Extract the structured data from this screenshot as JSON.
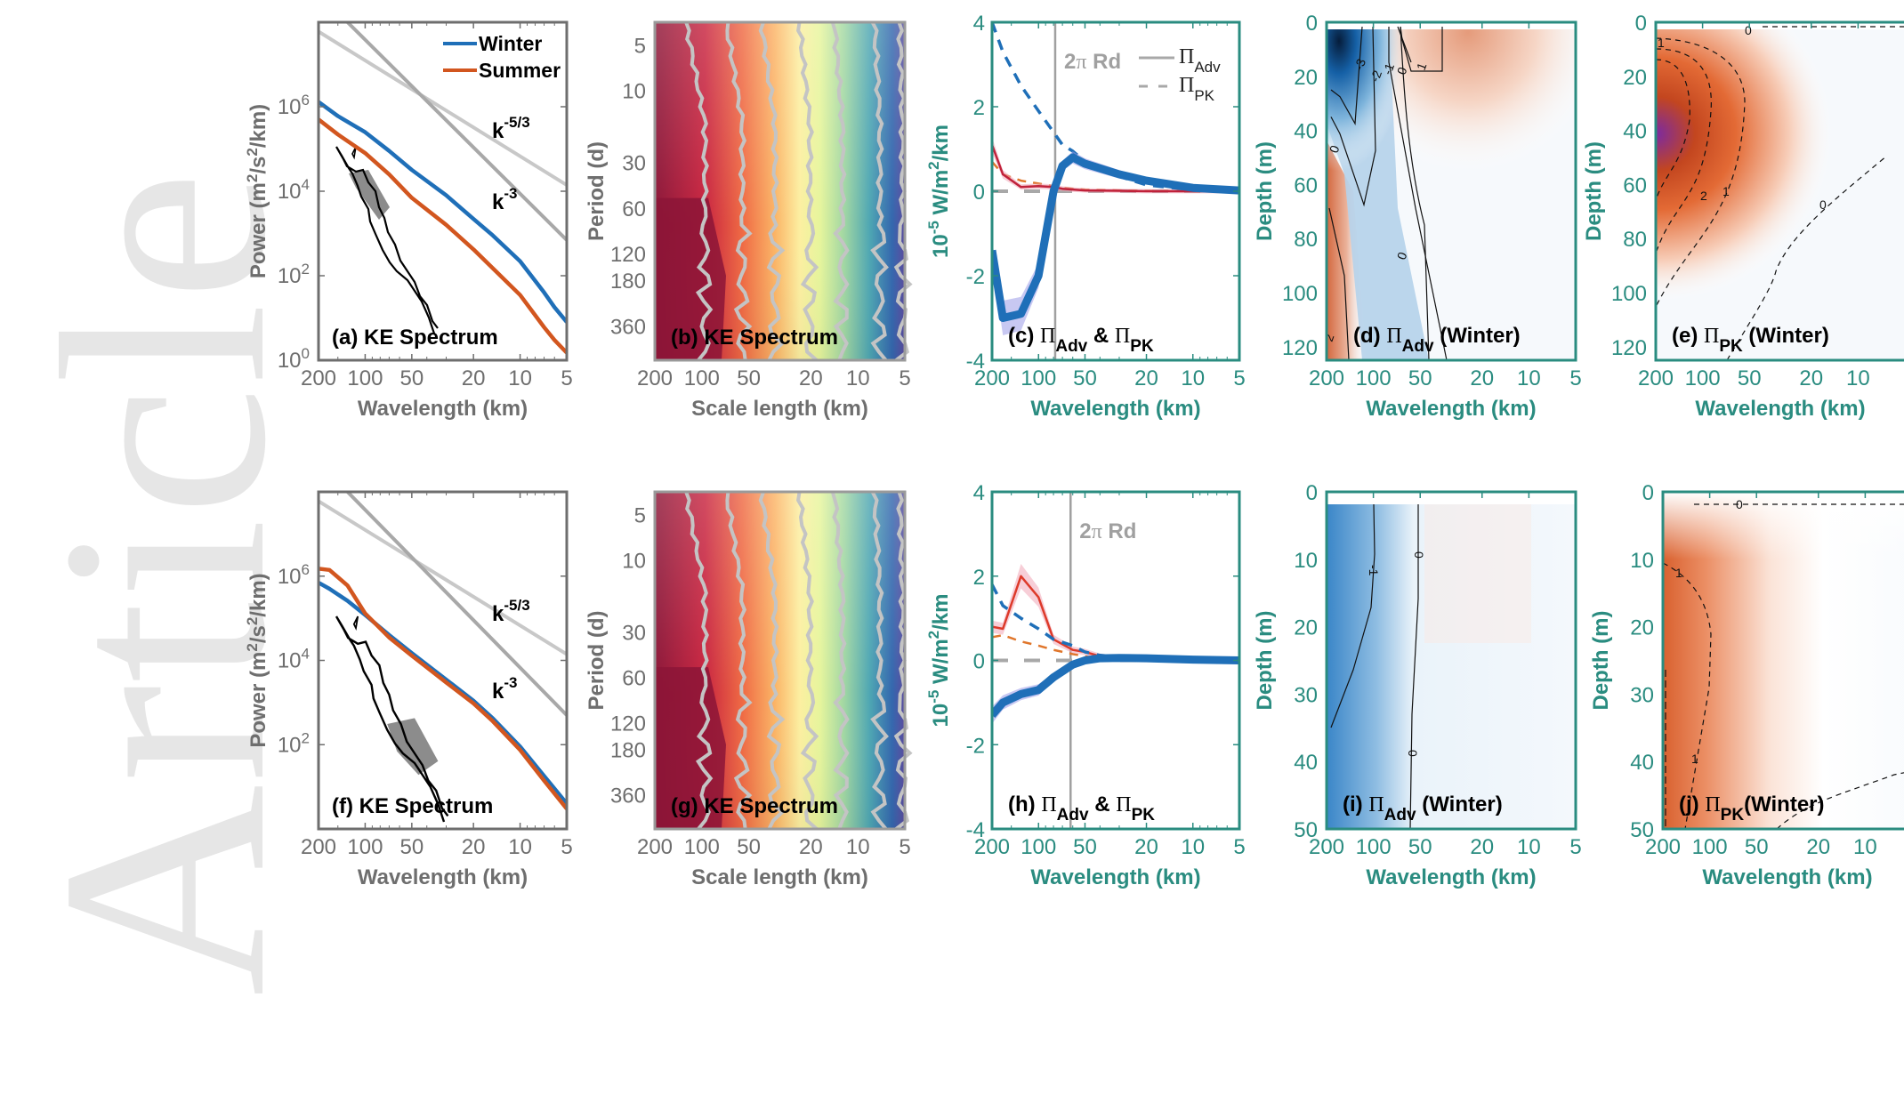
{
  "watermark": "Article",
  "colors": {
    "gray_axis": "#6e6e6e",
    "teal_axis": "#2a8c80",
    "winter": "#1f6fb8",
    "summer": "#d2561f",
    "ref_light": "#c8c8c8",
    "ref_dark": "#a8a8a8",
    "rd_line": "#a0a0a0",
    "adv_red": "#c0213a",
    "pk_orange": "#e0762b"
  },
  "chart_data": [
    {
      "id": "a",
      "type": "line",
      "title": "(a) KE Spectrum",
      "xlabel": "Wavelength (km)",
      "ylabel": "Power (m²/s²/km)",
      "xscale": "log-reversed",
      "yscale": "log",
      "xlim": [
        200,
        5
      ],
      "ylim": [
        1,
        100000000
      ],
      "xticks": [
        200,
        100,
        50,
        20,
        10,
        5
      ],
      "yticks": [
        {
          "v": 1,
          "label": "10",
          "exp": "0"
        },
        {
          "v": 100,
          "label": "10",
          "exp": "2"
        },
        {
          "v": 10000,
          "label": "10",
          "exp": "4"
        },
        {
          "v": 1000000,
          "label": "10",
          "exp": "6"
        }
      ],
      "legend": {
        "position": "top-right",
        "entries": [
          "Winter",
          "Summer"
        ]
      },
      "annotations": [
        {
          "text": "k",
          "sup": "-5/3"
        },
        {
          "text": "k",
          "sup": "-3"
        }
      ],
      "x": [
        200,
        150,
        100,
        70,
        50,
        30,
        20,
        15,
        10,
        7,
        6,
        5
      ],
      "series": [
        {
          "name": "Winter",
          "values": [
            1300000,
            600000,
            250000,
            90000,
            32000,
            8000,
            2200,
            900,
            220,
            40,
            18,
            8
          ]
        },
        {
          "name": "Summer",
          "values": [
            500000,
            220000,
            80000,
            25000,
            7000,
            1600,
            420,
            150,
            35,
            6,
            3,
            1.5
          ]
        },
        {
          "name": "k^-5/3 reference",
          "values_endpoints": [
            [
              200,
              60000000
            ],
            [
              5,
              14000
            ]
          ]
        },
        {
          "name": "k^-3 reference",
          "values_endpoints": [
            [
              130,
              100000000
            ],
            [
              5,
              700
            ]
          ]
        }
      ]
    },
    {
      "id": "b",
      "type": "heatmap",
      "title": "(b) KE Spectrum",
      "xlabel": "Scale length (km)",
      "ylabel": "Period (d)",
      "xticks": [
        200,
        100,
        50,
        20,
        10,
        5
      ],
      "yticks": [
        5,
        10,
        30,
        60,
        120,
        180,
        360
      ],
      "xlim": [
        200,
        5
      ],
      "ylim": [
        3.5,
        600
      ],
      "colormap": "spectral (dark red high → blue low)"
    },
    {
      "id": "c",
      "type": "line",
      "title": "(c) ΠAdv & ΠPK",
      "xlabel": "Wavelength (km)",
      "ylabel": "10⁻⁵ W/m²/km",
      "xscale": "log-reversed",
      "xlim": [
        200,
        5
      ],
      "ylim": [
        -4,
        4
      ],
      "xticks": [
        200,
        100,
        50,
        20,
        10,
        5
      ],
      "yticks": [
        -4,
        -2,
        0,
        2,
        4
      ],
      "legend": {
        "position": "top-right",
        "entries": [
          "ΠAdv",
          "ΠPK"
        ]
      },
      "annotations": [
        {
          "text": "2π Rd",
          "x": 78
        }
      ],
      "x": [
        200,
        170,
        130,
        100,
        80,
        70,
        60,
        50,
        30,
        20,
        10,
        5
      ],
      "series": [
        {
          "name": "Winter ΠAdv",
          "values": [
            -1.4,
            -3.0,
            -2.9,
            -2.0,
            0.0,
            0.6,
            0.8,
            0.65,
            0.4,
            0.25,
            0.08,
            0.02
          ]
        },
        {
          "name": "Winter ΠPK",
          "values": [
            4.0,
            3.3,
            2.5,
            1.9,
            1.4,
            1.1,
            0.95,
            0.7,
            0.35,
            0.15,
            0.03,
            0.0
          ]
        },
        {
          "name": "Summer ΠAdv",
          "values": [
            1.1,
            0.4,
            0.1,
            0.12,
            0.1,
            0.06,
            0.04,
            0.02,
            0.01,
            0.0,
            0.0,
            0.0
          ]
        },
        {
          "name": "Summer ΠPK",
          "values": [
            0.7,
            0.4,
            0.25,
            0.18,
            0.12,
            0.08,
            0.06,
            0.04,
            0.02,
            0.01,
            0.0,
            0.0
          ]
        },
        {
          "name": "Zero reference",
          "values": [
            0,
            0,
            0,
            0,
            0,
            0,
            0,
            0,
            0,
            0,
            0,
            0
          ]
        }
      ]
    },
    {
      "id": "d",
      "type": "heatmap",
      "title": "(d) ΠAdv (Winter)",
      "xlabel": "Wavelength (km)",
      "ylabel": "Depth (m)",
      "xticks": [
        200,
        100,
        50,
        20,
        10,
        5
      ],
      "yticks": [
        0,
        20,
        40,
        60,
        80,
        100,
        120
      ],
      "xlim": [
        200,
        5
      ],
      "ylim": [
        0,
        125
      ],
      "contour_labels": [
        "-3",
        "-2",
        "-1",
        "0",
        "1",
        "2"
      ],
      "colormap": "diverging blue-white-red"
    },
    {
      "id": "e",
      "type": "heatmap",
      "title": "(e) ΠPK (Winter)",
      "xlabel": "Wavelength (km)",
      "ylabel": "Depth (m)",
      "xticks": [
        200,
        100,
        50,
        20,
        10
      ],
      "yticks": [
        0,
        20,
        40,
        60,
        80,
        100,
        120
      ],
      "xlim": [
        200,
        5
      ],
      "ylim": [
        0,
        125
      ],
      "contour_labels": [
        "0",
        "1",
        "2",
        "0"
      ],
      "colormap": "diverging blue-white-red-purple"
    },
    {
      "id": "f",
      "type": "line",
      "title": "(f) KE Spectrum",
      "xlabel": "Wavelength (km)",
      "ylabel": "Power (m²/s²/km)",
      "xscale": "log-reversed",
      "yscale": "log",
      "xlim": [
        200,
        5
      ],
      "ylim": [
        1,
        100000000
      ],
      "xticks": [
        200,
        100,
        50,
        20,
        10,
        5
      ],
      "yticks": [
        {
          "v": 100,
          "label": "10",
          "exp": "2"
        },
        {
          "v": 10000,
          "label": "10",
          "exp": "4"
        },
        {
          "v": 1000000,
          "label": "10",
          "exp": "6"
        }
      ],
      "annotations": [
        {
          "text": "k",
          "sup": "-5/3"
        },
        {
          "text": "k",
          "sup": "-3"
        }
      ],
      "x": [
        200,
        170,
        130,
        100,
        70,
        50,
        30,
        20,
        15,
        10,
        7,
        5
      ],
      "series": [
        {
          "name": "Winter",
          "values": [
            700000,
            500000,
            260000,
            120000,
            40000,
            15000,
            3500,
            1100,
            420,
            90,
            18,
            4
          ]
        },
        {
          "name": "Summer",
          "values": [
            1500000,
            1400000,
            600000,
            130000,
            35000,
            13000,
            3000,
            950,
            360,
            75,
            14,
            3
          ]
        },
        {
          "name": "k^-5/3 reference",
          "values_endpoints": [
            [
              200,
              60000000
            ],
            [
              5,
              14000
            ]
          ]
        },
        {
          "name": "k^-3 reference",
          "values_endpoints": [
            [
              130,
              100000000
            ],
            [
              5,
              500
            ]
          ]
        }
      ]
    },
    {
      "id": "g",
      "type": "heatmap",
      "title": "(g) KE Spectrum",
      "xlabel": "Scale length (km)",
      "ylabel": "Period (d)",
      "xticks": [
        200,
        100,
        50,
        20,
        10,
        5
      ],
      "yticks": [
        5,
        10,
        30,
        60,
        120,
        180,
        360
      ],
      "xlim": [
        200,
        5
      ],
      "ylim": [
        3.5,
        600
      ],
      "colormap": "spectral (dark red high → blue low)"
    },
    {
      "id": "h",
      "type": "line",
      "title": "(h) ΠAdv & ΠPK",
      "xlabel": "Wavelength (km)",
      "ylabel": "10⁻⁵ W/m²/km",
      "xscale": "log-reversed",
      "xlim": [
        200,
        5
      ],
      "ylim": [
        -4,
        4
      ],
      "xticks": [
        200,
        100,
        50,
        20,
        10,
        5
      ],
      "yticks": [
        -4,
        -2,
        0,
        2,
        4
      ],
      "annotations": [
        {
          "text": "2π Rd",
          "x": 62
        }
      ],
      "x": [
        200,
        170,
        130,
        100,
        80,
        60,
        50,
        40,
        30,
        20,
        10,
        5
      ],
      "series": [
        {
          "name": "Winter ΠAdv",
          "values": [
            -1.3,
            -1.0,
            -0.8,
            -0.7,
            -0.4,
            -0.1,
            0.0,
            0.05,
            0.06,
            0.05,
            0.02,
            0.0
          ]
        },
        {
          "name": "Winter ΠPK",
          "values": [
            1.8,
            1.3,
            1.0,
            0.75,
            0.5,
            0.35,
            0.2,
            0.12,
            0.08,
            0.05,
            0.01,
            0.0
          ]
        },
        {
          "name": "Summer ΠAdv",
          "values": [
            0.8,
            0.75,
            2.0,
            1.5,
            0.5,
            0.25,
            0.2,
            0.1,
            0.05,
            0.02,
            0.0,
            0.0
          ]
        },
        {
          "name": "Summer ΠPK",
          "values": [
            0.55,
            0.6,
            0.45,
            0.35,
            0.25,
            0.15,
            0.1,
            0.05,
            0.02,
            0.0,
            0.0,
            0.0
          ]
        },
        {
          "name": "Zero reference",
          "values": [
            0,
            0,
            0,
            0,
            0,
            0,
            0,
            0,
            0,
            0,
            0,
            0
          ]
        }
      ]
    },
    {
      "id": "i",
      "type": "heatmap",
      "title": "(i) ΠAdv (Winter)",
      "xlabel": "Wavelength (km)",
      "ylabel": "Depth (m)",
      "xticks": [
        200,
        100,
        50,
        20,
        10,
        5
      ],
      "yticks": [
        0,
        10,
        20,
        30,
        40,
        50
      ],
      "xlim": [
        200,
        5
      ],
      "ylim": [
        0,
        50
      ],
      "contour_labels": [
        "-1",
        "0",
        "0"
      ],
      "colormap": "diverging blue-white-red"
    },
    {
      "id": "j",
      "type": "heatmap",
      "title": "(j) ΠPK (Winter)",
      "xlabel": "Wavelength (km)",
      "ylabel": "Depth (m)",
      "xticks": [
        200,
        100,
        50,
        20,
        10
      ],
      "yticks": [
        0,
        10,
        20,
        30,
        40,
        50
      ],
      "xlim": [
        200,
        5
      ],
      "ylim": [
        0,
        50
      ],
      "contour_labels": [
        "0",
        "1",
        "1"
      ],
      "colormap": "diverging blue-white-red"
    }
  ]
}
